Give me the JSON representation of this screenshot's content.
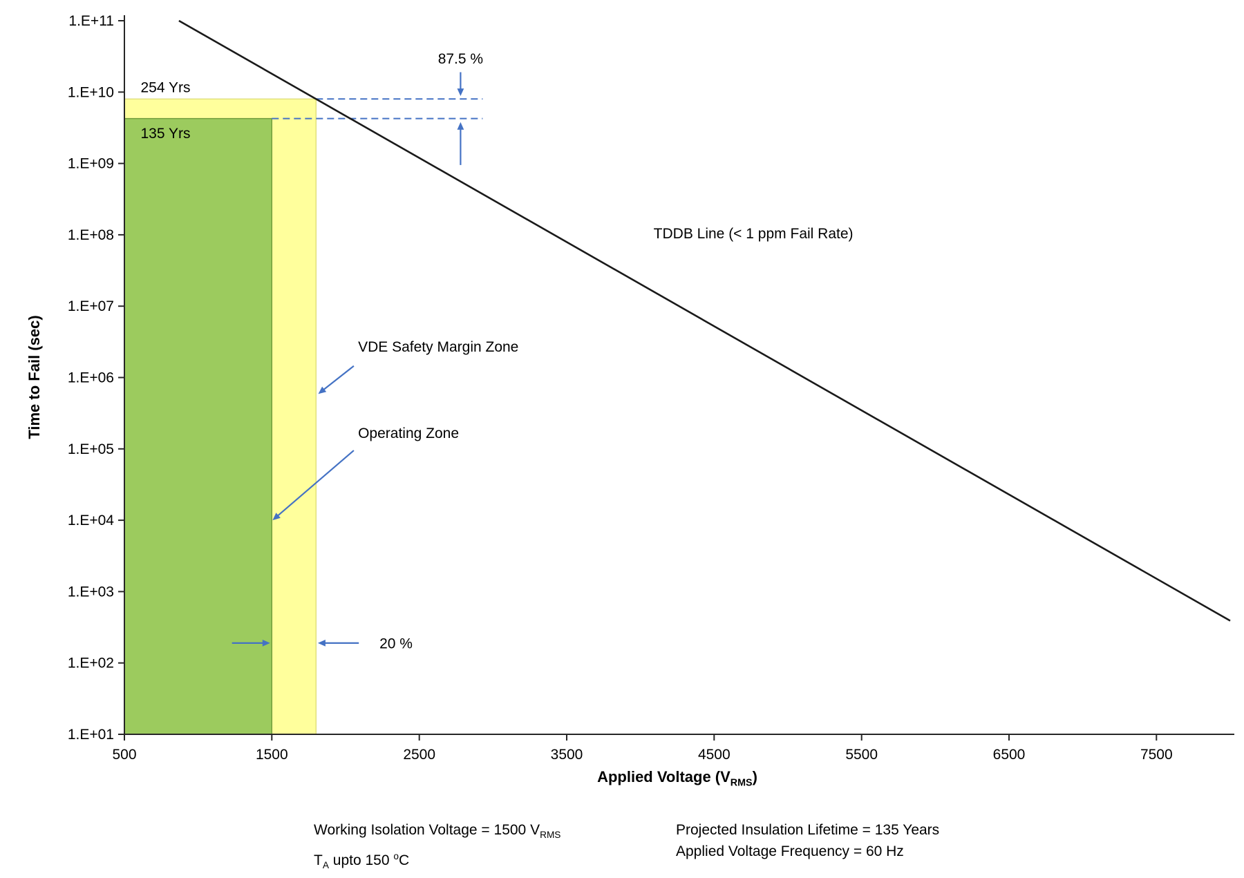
{
  "chart_data": {
    "type": "line",
    "title": "",
    "ylabel": "Time to Fail (sec)",
    "xlabel_parts": {
      "main": "Applied Voltage (V",
      "sub": "RMS",
      "end": ")"
    },
    "axis_color": "#262626",
    "accent_color": "#4472C4",
    "x_axis": {
      "min": 500,
      "max": 8000,
      "tick_start": 500,
      "tick_step": 1000,
      "tick_labels": [
        "500",
        "1500",
        "2500",
        "3500",
        "4500",
        "5500",
        "6500",
        "7500"
      ]
    },
    "y_axis": {
      "scale": "log",
      "min_exp": 1,
      "max_exp": 11,
      "tick_labels": [
        "1.E+01",
        "1.E+02",
        "1.E+03",
        "1.E+04",
        "1.E+05",
        "1.E+06",
        "1.E+07",
        "1.E+08",
        "1.E+09",
        "1.E+10",
        "1.E+11"
      ]
    },
    "series": [
      {
        "name": "TDDB Line (< 1 ppm Fail Rate)",
        "color": "#1a1a1a",
        "points": [
          {
            "x": 870,
            "y": 100000000000.0
          },
          {
            "x": 8000,
            "y": 390
          }
        ]
      }
    ],
    "zones": [
      {
        "name": "vde-safety-margin-zone",
        "label": "254 Yrs",
        "x0": 500,
        "x1": 1800,
        "y0": 10,
        "y1": 8000000000.0,
        "fill": "#FFFF9C",
        "stroke": "#E0DF7B"
      },
      {
        "name": "operating-zone",
        "label": "135 Yrs",
        "x0": 500,
        "x1": 1500,
        "y0": 10,
        "y1": 4260000000.0,
        "fill": "#9CCB5E",
        "stroke": "#6E9A3A"
      }
    ],
    "dashed_lines": [
      {
        "y": 8000000000.0,
        "x0": 1800,
        "x1": 2930,
        "color": "#4472C4"
      },
      {
        "y": 4260000000.0,
        "x0": 1500,
        "x1": 2930,
        "color": "#4472C4"
      }
    ],
    "arrows": [
      {
        "id": "arrow-87-5-down",
        "from": {
          "v": 2780,
          "t": 19000000000.0
        },
        "to": {
          "v": 2780,
          "t": 8800000000.0
        }
      },
      {
        "id": "arrow-87-5-up",
        "from": {
          "v": 2780,
          "t": 950000000.0
        },
        "to": {
          "v": 2780,
          "t": 3800000000.0
        }
      },
      {
        "id": "arrow-vde-safety-margin",
        "from": {
          "v": 2056,
          "t": 1450000.0
        },
        "to": {
          "v": 1815,
          "t": 590000.0
        }
      },
      {
        "id": "arrow-operating-zone",
        "from": {
          "v": 2056,
          "t": 95000.0
        },
        "to": {
          "v": 1505,
          "t": 10000.0
        }
      },
      {
        "id": "arrow-20-percent-right",
        "from": {
          "v": 1230,
          "t": 190.0
        },
        "to": {
          "v": 1488,
          "t": 190.0
        }
      },
      {
        "id": "arrow-20-percent-left",
        "from": {
          "v": 2090,
          "t": 190.0
        },
        "to": {
          "v": 1812,
          "t": 190.0
        }
      }
    ],
    "annotations": [
      {
        "id": "label-254-yrs",
        "text": "254 Yrs",
        "v": 610,
        "t": 10000000000.0,
        "anchor": "start"
      },
      {
        "id": "label-135-yrs",
        "text": "135 Yrs",
        "v": 610,
        "t": 2260000000.0,
        "anchor": "start"
      },
      {
        "id": "label-87-5-percent",
        "text": "87.5 %",
        "v": 2780,
        "t": 25000000000.0,
        "anchor": "middle"
      },
      {
        "id": "label-tddb-line",
        "text": "TDDB Line (< 1 ppm Fail Rate)",
        "v": 4766,
        "t": 89000000.0,
        "anchor": "middle"
      },
      {
        "id": "label-vde-safety-margin-zone",
        "text": "VDE Safety Margin Zone",
        "v": 2085,
        "t": 2300000.0,
        "anchor": "start"
      },
      {
        "id": "label-operating-zone",
        "text": "Operating Zone",
        "v": 2085,
        "t": 142000.0,
        "anchor": "start"
      },
      {
        "id": "label-20-percent",
        "text": "20 %",
        "v": 2230,
        "t": 160.0,
        "anchor": "start"
      }
    ]
  },
  "footer": {
    "line1_left_pre": "Working Isolation Voltage = 1500 V",
    "line1_left_sub": "RMS",
    "line2_left_pre": "T",
    "line2_left_sub": "A",
    "line2_left_mid": " upto 150 ",
    "line2_left_sup": "o",
    "line2_left_end": "C",
    "line1_right": "Projected Insulation Lifetime = 135 Years",
    "line2_right": "Applied Voltage Frequency = 60 Hz"
  }
}
